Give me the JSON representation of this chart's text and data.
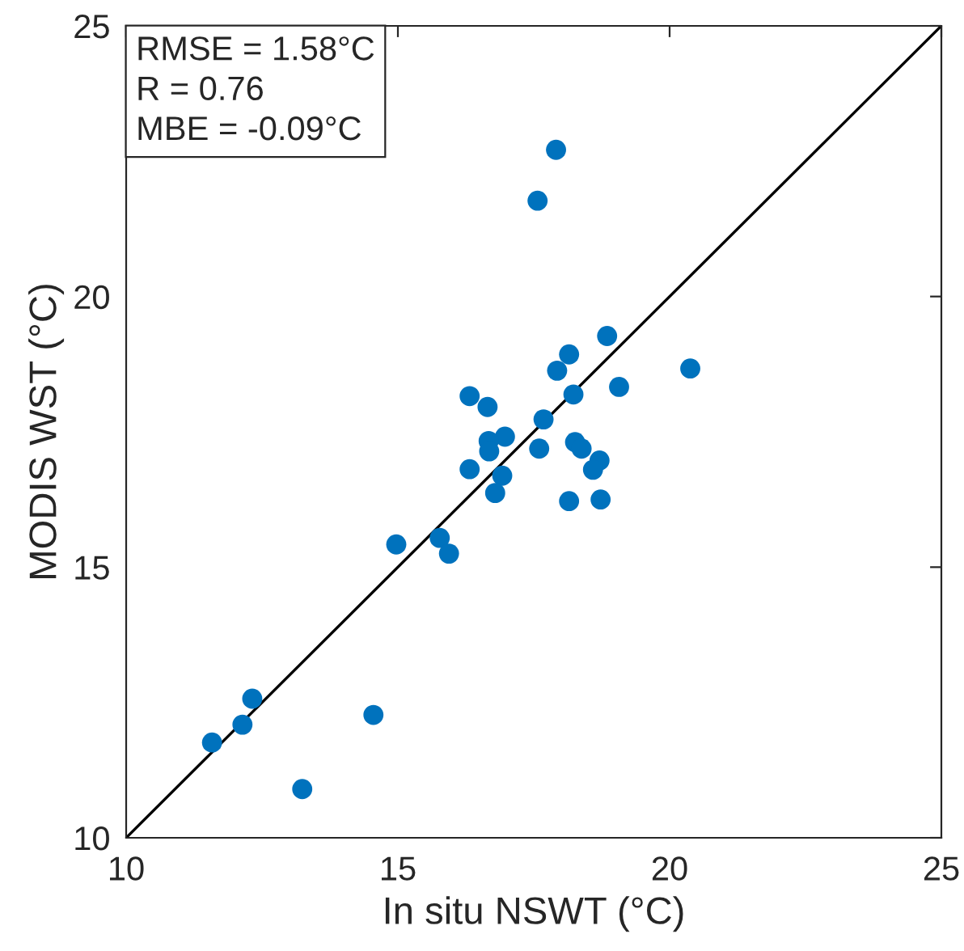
{
  "chart_data": {
    "type": "scatter",
    "xlabel": "In situ NSWT (°C)",
    "ylabel": "MODIS WST (°C)",
    "xlim": [
      10,
      25
    ],
    "ylim": [
      10,
      25
    ],
    "xticks": [
      10,
      15,
      20,
      25
    ],
    "yticks": [
      10,
      15,
      20,
      25
    ],
    "grid": false,
    "marker": "circle",
    "annotations": [
      "RMSE = 1.58°C",
      "R = 0.76",
      "MBE = -0.09°C"
    ],
    "series": [
      {
        "color": "#0072bd",
        "x": [
          11.58,
          12.14,
          12.32,
          13.24,
          14.55,
          17.91,
          17.57,
          18.85,
          18.15,
          17.93,
          20.38,
          19.07,
          18.23,
          16.32,
          16.65,
          17.68,
          16.97,
          16.67,
          16.68,
          18.26,
          18.38,
          17.6,
          18.71,
          18.59,
          16.32,
          16.92,
          16.79,
          18.15,
          18.73,
          14.97,
          15.77,
          15.94
        ],
        "values": [
          11.76,
          12.09,
          12.57,
          10.9,
          12.27,
          22.71,
          21.77,
          19.27,
          18.93,
          18.63,
          18.67,
          18.33,
          18.19,
          18.16,
          17.96,
          17.73,
          17.41,
          17.33,
          17.14,
          17.31,
          17.19,
          17.19,
          16.97,
          16.8,
          16.81,
          16.69,
          16.37,
          16.22,
          16.25,
          15.42,
          15.54,
          15.25
        ]
      },
      {
        "type": "line",
        "color": "#000000",
        "x": [
          10,
          25
        ],
        "values": [
          10,
          25
        ],
        "marker": "none",
        "line_style": "solid"
      }
    ]
  }
}
